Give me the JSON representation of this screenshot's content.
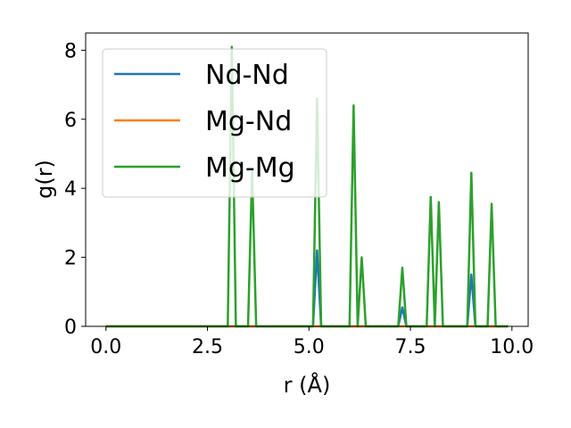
{
  "chart_data": {
    "type": "line",
    "title": "",
    "xlabel": "r (Å)",
    "ylabel": "g(r)",
    "xlim": [
      -0.5,
      10.4
    ],
    "ylim": [
      0,
      8.5
    ],
    "xticks": [
      0.0,
      2.5,
      5.0,
      7.5,
      10.0
    ],
    "xtick_labels": [
      "0.0",
      "2.5",
      "5.0",
      "7.5",
      "10.0"
    ],
    "yticks": [
      0,
      2,
      4,
      6,
      8
    ],
    "ytick_labels": [
      "0",
      "2",
      "4",
      "6",
      "8"
    ],
    "grid": false,
    "legend_position": "upper-left",
    "series": [
      {
        "name": "Nd-Nd",
        "color": "#1f77b4",
        "x": [
          0.0,
          5.1,
          5.2,
          5.3,
          7.2,
          7.3,
          7.4,
          8.9,
          9.0,
          9.1,
          9.9
        ],
        "y": [
          0,
          0,
          2.2,
          0,
          0,
          0.55,
          0,
          0,
          1.5,
          0,
          0
        ]
      },
      {
        "name": "Mg-Nd",
        "color": "#ff7f0e",
        "x": [
          0.0,
          9.9
        ],
        "y": [
          0,
          0
        ]
      },
      {
        "name": "Mg-Mg",
        "color": "#2ca02c",
        "x": [
          0.0,
          3.0,
          3.1,
          3.2,
          3.5,
          3.6,
          3.7,
          5.1,
          5.2,
          5.3,
          6.0,
          6.1,
          6.2,
          6.3,
          6.4,
          7.2,
          7.3,
          7.4,
          7.9,
          8.0,
          8.1,
          8.2,
          8.3,
          8.9,
          9.0,
          9.1,
          9.4,
          9.5,
          9.6,
          9.9
        ],
        "y": [
          0,
          0,
          8.1,
          0,
          0,
          4.5,
          0,
          0,
          6.6,
          0,
          0,
          6.4,
          0,
          2.0,
          0,
          0,
          1.7,
          0,
          0,
          3.75,
          0,
          3.6,
          0,
          0,
          4.45,
          0,
          0,
          3.55,
          0,
          0
        ]
      }
    ]
  }
}
